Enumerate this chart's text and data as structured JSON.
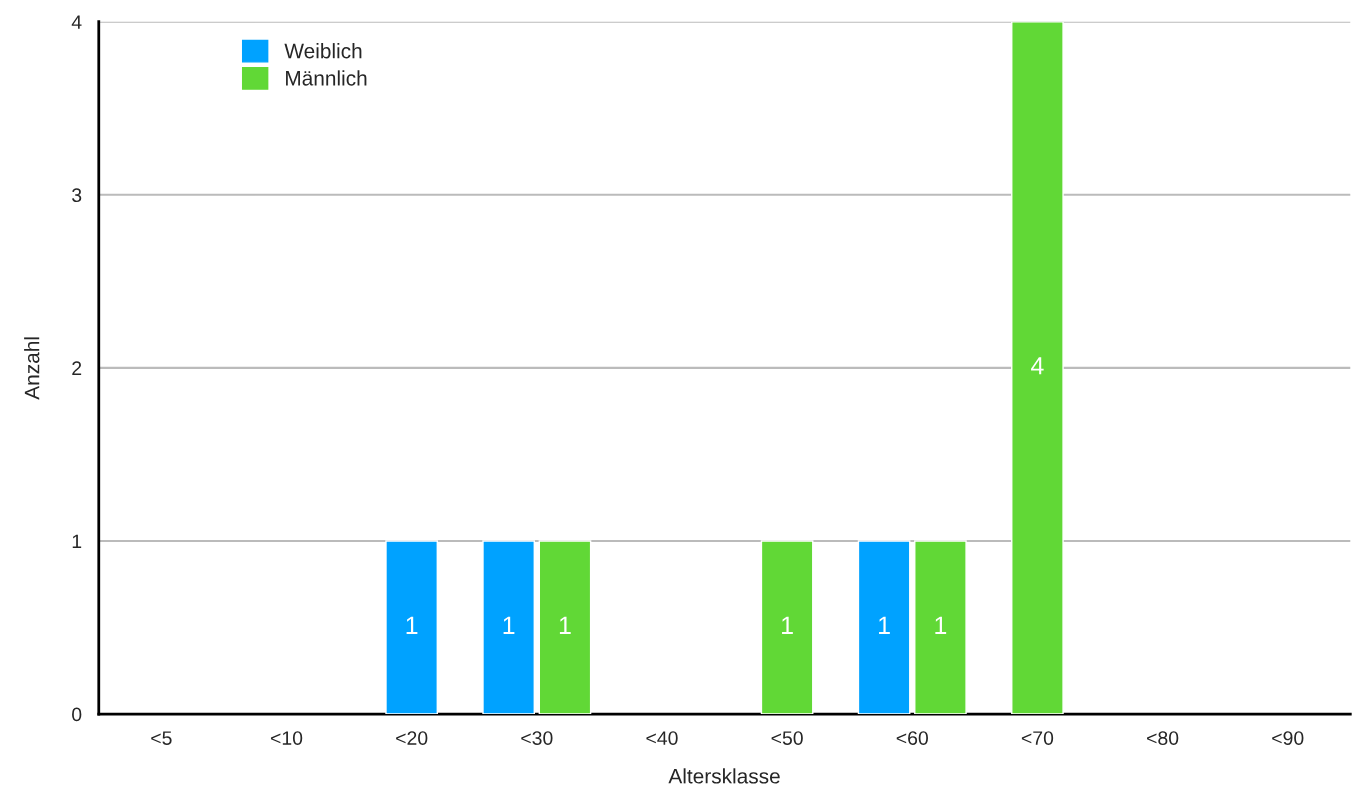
{
  "chart_data": {
    "type": "bar",
    "xlabel": "Altersklasse",
    "ylabel": "Anzahl",
    "categories": [
      "<5",
      "<10",
      "<20",
      "<30",
      "<40",
      "<50",
      "<60",
      "<70",
      "<80",
      "<90"
    ],
    "series": [
      {
        "name": "Weiblich",
        "color": "#00a2ff",
        "values": [
          null,
          null,
          1,
          1,
          null,
          null,
          1,
          null,
          null,
          null
        ]
      },
      {
        "name": "Männlich",
        "color": "#61d836",
        "values": [
          null,
          null,
          null,
          1,
          null,
          1,
          1,
          4,
          null,
          null
        ]
      }
    ],
    "ylim": [
      0,
      4
    ],
    "yticks": [
      0,
      1,
      2,
      3,
      4
    ],
    "grid": "y",
    "legend": "top left",
    "data_labels": true
  }
}
